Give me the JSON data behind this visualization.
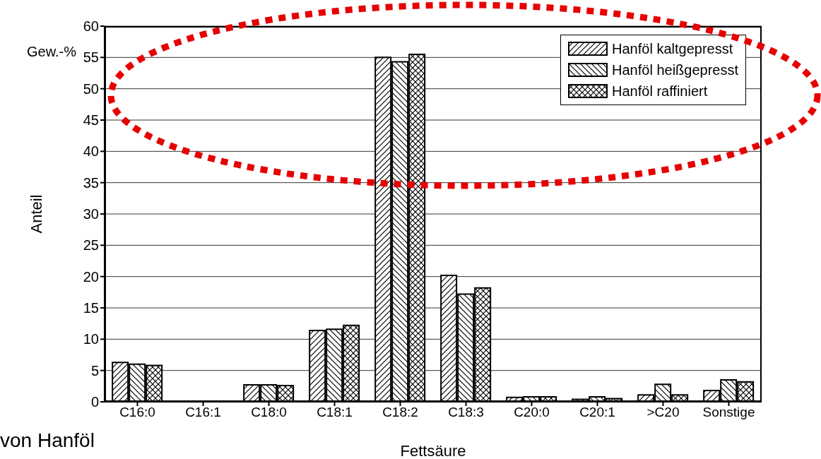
{
  "chart_data": {
    "type": "bar",
    "xlabel": "Fettsäure",
    "ylabel": "Anteil",
    "annotations": [
      "Gew.-%",
      "von Hanföl"
    ],
    "categories": [
      "C16:0",
      "C16:1",
      "C18:0",
      "C18:1",
      "C18:2",
      "C18:3",
      "C20:0",
      "C20:1",
      ">C20",
      "Sonstige"
    ],
    "series": [
      {
        "name": "Hanföl kaltgepresst",
        "color": "#000000",
        "values": [
          6.3,
          0.1,
          2.7,
          11.4,
          55.0,
          20.2,
          0.7,
          0.4,
          1.1,
          1.8
        ]
      },
      {
        "name": "Hanföl heißgepresst",
        "color": "#000000",
        "values": [
          6.0,
          0.1,
          2.7,
          11.6,
          54.3,
          17.2,
          0.8,
          0.8,
          2.8,
          3.5
        ]
      },
      {
        "name": "Hanföl raffiniert",
        "color": "#000000",
        "values": [
          5.8,
          0.1,
          2.6,
          12.2,
          55.5,
          18.2,
          0.8,
          0.5,
          1.1,
          3.2
        ]
      }
    ],
    "ylim": [
      0,
      60
    ],
    "yticks": [
      0,
      5,
      10,
      15,
      20,
      25,
      30,
      35,
      40,
      45,
      50,
      55,
      60
    ],
    "grid": "y",
    "legend": "top right"
  }
}
